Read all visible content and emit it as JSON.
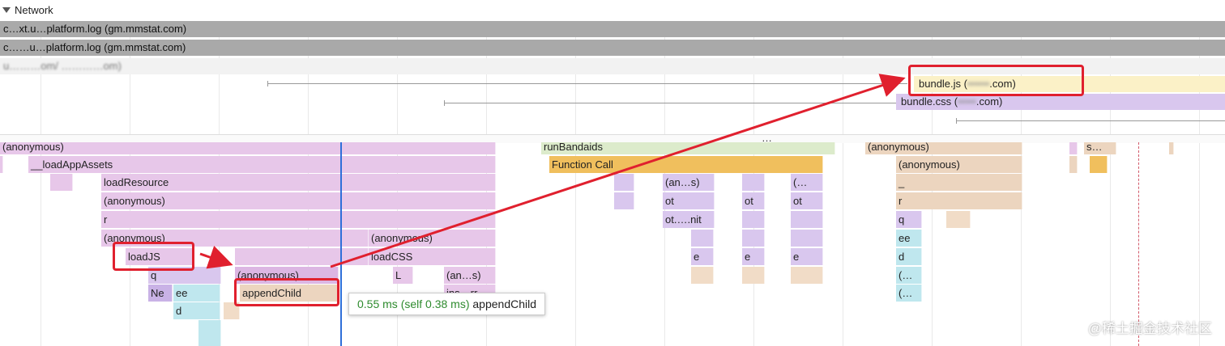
{
  "network": {
    "section_title": "Network",
    "rows": [
      {
        "text": "c…xt.u…platform.log (gm.mmstat.com)"
      },
      {
        "text": "c……u…platform.log (gm.mmstat.com)"
      },
      {
        "text": "u………om/ …………om)"
      }
    ],
    "requests": {
      "bundle_js": "bundle.js (",
      "bundle_js_blur": "••••••",
      "bundle_js_tail": ".com)",
      "bundle_css": "bundle.css (",
      "bundle_css_blur": "•••••",
      "bundle_css_tail": ".com)"
    }
  },
  "divider": {
    "handle": "…"
  },
  "flame": {
    "col_left": {
      "anonymous": "(anonymous)",
      "loadAppAssets": "__loadAppAssets",
      "loadResource": "loadResource",
      "anonymous2": "(anonymous)",
      "r": "r",
      "anonymous3": "(anonymous)",
      "loadJS": "loadJS",
      "anonymous4": "(anonymous)",
      "q": "q",
      "Ne": "Ne",
      "ee": "ee",
      "d": "d",
      "appendChild": "appendChild"
    },
    "col_mid": {
      "anonymous": "(anonymous)",
      "loadCSS": "loadCSS",
      "L": "L",
      "an_s": "(an…s)",
      "ins": "ins…rr"
    },
    "col_run": {
      "runBandaids": "runBandaids",
      "functionCall": "Function Call",
      "an_s": "(an…s)",
      "ot1": "ot",
      "ot_nit": "ot.….nit",
      "ot2": "ot",
      "ot3": "ot",
      "paren": "(…",
      "e1": "e",
      "e2": "e",
      "e3": "e"
    },
    "col_right": {
      "anonymous": "(anonymous)",
      "anonymous2": "(anonymous)",
      "underscore": "_",
      "r": "r",
      "q": "q",
      "ee": "ee",
      "d": "d",
      "p1": "(…",
      "p2": "(…",
      "s": "s…"
    }
  },
  "tooltip": {
    "time": "0.55 ms (self 0.38 ms)",
    "name": "appendChild"
  },
  "watermark": "@稀土掘金技术社区",
  "colors": {
    "highlight": "#e0202e",
    "cursor": "#2f6fd9",
    "tooltip_time": "#2e8b2e"
  }
}
